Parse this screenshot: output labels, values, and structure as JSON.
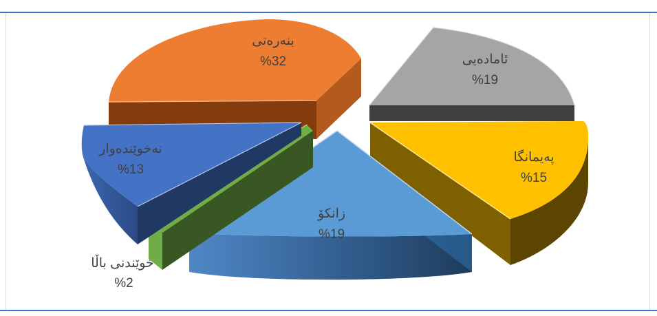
{
  "chart_data": {
    "type": "pie",
    "title": "",
    "style": "3d-exploded",
    "series": [
      {
        "label": "بنەرەتی",
        "value": 32,
        "value_label": "%32",
        "color": "#ed7d31"
      },
      {
        "label": "ئامادەیی",
        "value": 19,
        "value_label": "%19",
        "color": "#a5a5a5"
      },
      {
        "label": "پەیمانگا",
        "value": 15,
        "value_label": "%15",
        "color": "#ffc000"
      },
      {
        "label": "زانکۆ",
        "value": 19,
        "value_label": "%19",
        "color": "#5b9bd5"
      },
      {
        "label": "خوێندنی باڵا",
        "value": 2,
        "value_label": "%2",
        "color": "#70ad47"
      },
      {
        "label": "نەخوێندەوار",
        "value": 13,
        "value_label": "%13",
        "color": "#4472c4"
      }
    ]
  }
}
